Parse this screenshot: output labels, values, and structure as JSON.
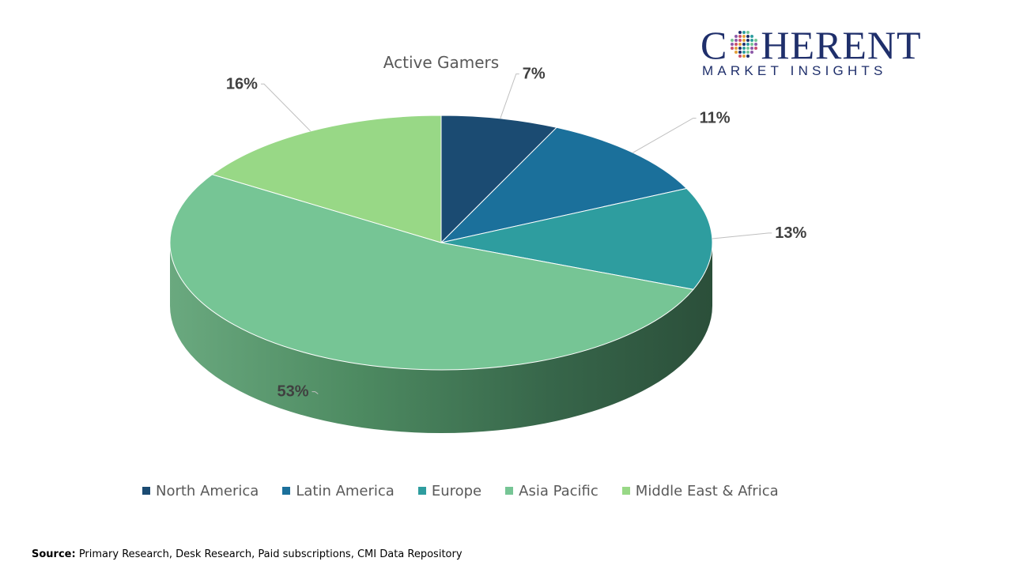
{
  "chart_data": {
    "type": "pie",
    "style": "3d",
    "title": "Active Gamers",
    "categories": [
      "North America",
      "Latin America",
      "Europe",
      "Asia Pacific",
      "Middle East & Africa"
    ],
    "values": [
      7,
      11,
      13,
      53,
      16
    ],
    "data_labels": [
      "7%",
      "11%",
      "13%",
      "53%",
      "16%"
    ],
    "colors": [
      "#1b4b72",
      "#1b709b",
      "#2e9d9f",
      "#76c595",
      "#98d886"
    ],
    "legend_position": "bottom"
  },
  "logo": {
    "brand_first": "C",
    "brand_rest": "HERENT",
    "brand_sub": "MARKET INSIGHTS"
  },
  "source": {
    "label": "Source:",
    "text": " Primary Research, Desk Research, Paid subscriptions, CMI Data Repository"
  }
}
